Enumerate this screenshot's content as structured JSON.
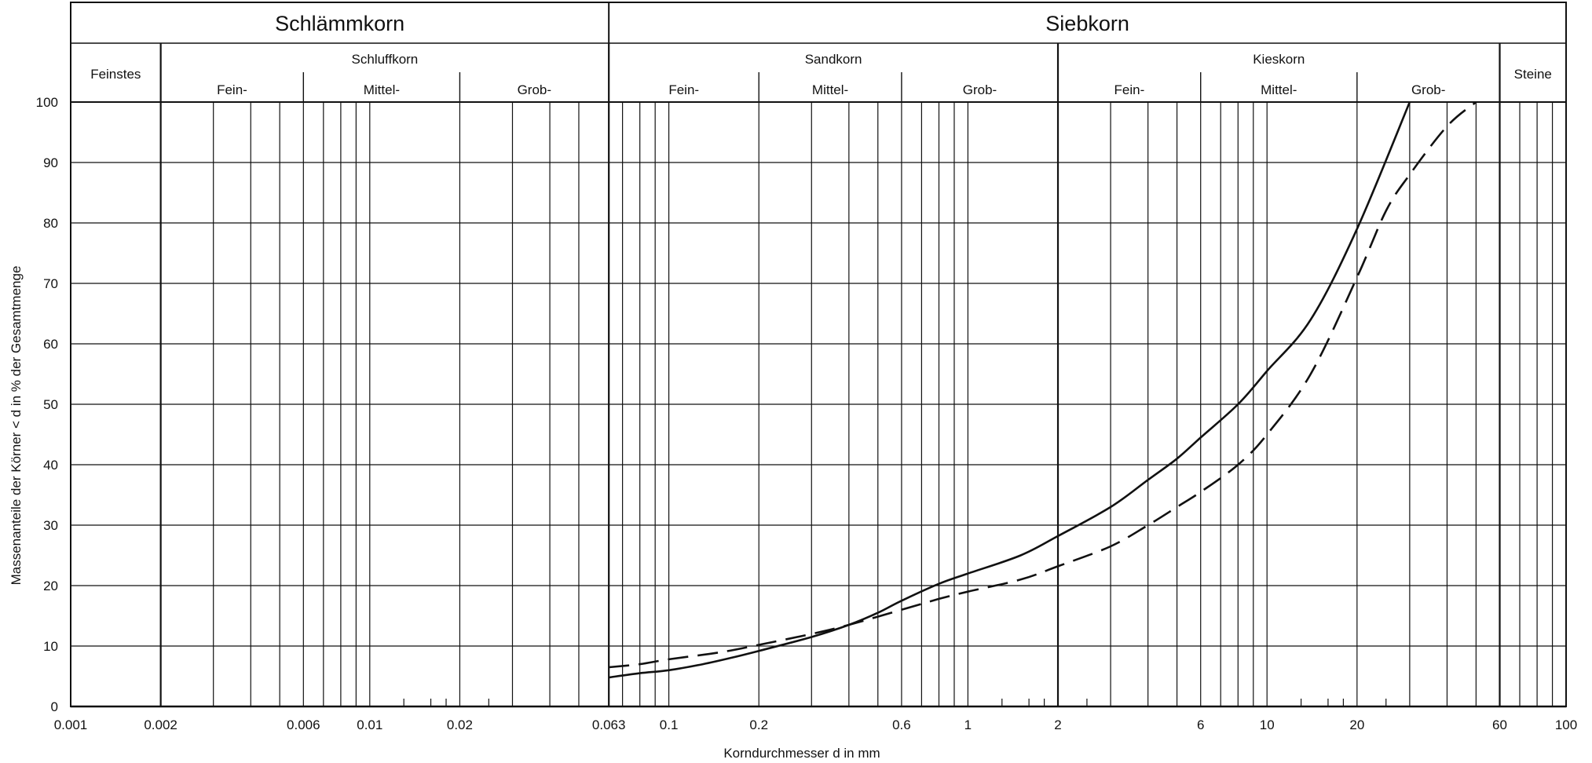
{
  "chart_data": {
    "type": "line",
    "title": "",
    "xlabel": "Korndurchmesser d in mm",
    "ylabel": "Massenanteile der Körner < d in % der Gesamtmenge",
    "x_scale": "log",
    "xlim": [
      0.001,
      100
    ],
    "ylim": [
      0,
      100
    ],
    "grid": true,
    "x_ticks": [
      {
        "v": 0.001,
        "label": "0.001"
      },
      {
        "v": 0.002,
        "label": "0.002"
      },
      {
        "v": 0.006,
        "label": "0.006"
      },
      {
        "v": 0.01,
        "label": "0.01"
      },
      {
        "v": 0.02,
        "label": "0.02"
      },
      {
        "v": 0.063,
        "label": "0.063"
      },
      {
        "v": 0.1,
        "label": "0.1"
      },
      {
        "v": 0.2,
        "label": "0.2"
      },
      {
        "v": 0.6,
        "label": "0.6"
      },
      {
        "v": 1,
        "label": "1"
      },
      {
        "v": 2,
        "label": "2"
      },
      {
        "v": 6,
        "label": "6"
      },
      {
        "v": 10,
        "label": "10"
      },
      {
        "v": 20,
        "label": "20"
      },
      {
        "v": 60,
        "label": "60"
      },
      {
        "v": 100,
        "label": "100"
      }
    ],
    "y_ticks": [
      0,
      10,
      20,
      30,
      40,
      50,
      60,
      70,
      80,
      90,
      100
    ],
    "major_gridlines_x": [
      0.002,
      0.063,
      2,
      60
    ],
    "minor_gridlines_x": [
      0.003,
      0.004,
      0.005,
      0.006,
      0.007,
      0.008,
      0.009,
      0.01,
      0.02,
      0.03,
      0.04,
      0.05,
      0.07,
      0.08,
      0.09,
      0.1,
      0.2,
      0.3,
      0.4,
      0.5,
      0.6,
      0.7,
      0.8,
      0.9,
      1,
      3,
      4,
      5,
      6,
      7,
      8,
      9,
      10,
      20,
      30,
      40,
      50,
      70,
      80,
      90
    ],
    "small_ticks_x": [
      0.013,
      0.016,
      0.018,
      0.025,
      1.3,
      1.6,
      1.8,
      2.5,
      13,
      16,
      18,
      25
    ],
    "header": {
      "groups": [
        {
          "label": "Schlämmkorn",
          "from": 0.001,
          "to": 0.063
        },
        {
          "label": "Siebkorn",
          "from": 0.063,
          "to": 100
        }
      ],
      "fractions": [
        {
          "label": "Feinstes",
          "from": 0.001,
          "to": 0.002,
          "full_height": true
        },
        {
          "label": "Schluffkorn",
          "from": 0.002,
          "to": 0.063
        },
        {
          "label": "Sandkorn",
          "from": 0.063,
          "to": 2
        },
        {
          "label": "Kieskorn",
          "from": 2,
          "to": 60
        },
        {
          "label": "Steine",
          "from": 60,
          "to": 100,
          "full_height": true
        }
      ],
      "subfractions": [
        {
          "label": "Fein-",
          "from": 0.002,
          "to": 0.006
        },
        {
          "label": "Mittel-",
          "from": 0.006,
          "to": 0.02
        },
        {
          "label": "Grob-",
          "from": 0.02,
          "to": 0.063
        },
        {
          "label": "Fein-",
          "from": 0.063,
          "to": 0.2
        },
        {
          "label": "Mittel-",
          "from": 0.2,
          "to": 0.6
        },
        {
          "label": "Grob-",
          "from": 0.6,
          "to": 2
        },
        {
          "label": "Fein-",
          "from": 2,
          "to": 6
        },
        {
          "label": "Mittel-",
          "from": 6,
          "to": 20
        },
        {
          "label": "Grob-",
          "from": 20,
          "to": 60
        }
      ]
    },
    "series": [
      {
        "style": "solid",
        "points": [
          [
            0.063,
            4.8
          ],
          [
            0.08,
            5.5
          ],
          [
            0.1,
            6.0
          ],
          [
            0.13,
            7.0
          ],
          [
            0.16,
            8.0
          ],
          [
            0.2,
            9.2
          ],
          [
            0.3,
            11.5
          ],
          [
            0.4,
            13.5
          ],
          [
            0.5,
            15.5
          ],
          [
            0.6,
            17.5
          ],
          [
            0.8,
            20.3
          ],
          [
            1,
            22.0
          ],
          [
            1.5,
            25.0
          ],
          [
            2,
            28.2
          ],
          [
            3,
            33.0
          ],
          [
            4,
            37.5
          ],
          [
            5,
            41.0
          ],
          [
            6,
            44.5
          ],
          [
            8,
            50.0
          ],
          [
            10,
            55.5
          ],
          [
            14,
            64.0
          ],
          [
            20,
            79.0
          ],
          [
            30,
            100.0
          ]
        ]
      },
      {
        "style": "dashed",
        "points": [
          [
            0.063,
            6.5
          ],
          [
            0.08,
            7.0
          ],
          [
            0.1,
            7.8
          ],
          [
            0.15,
            9.0
          ],
          [
            0.2,
            10.2
          ],
          [
            0.3,
            12.0
          ],
          [
            0.4,
            13.5
          ],
          [
            0.6,
            16.0
          ],
          [
            0.8,
            17.8
          ],
          [
            1,
            19.0
          ],
          [
            1.5,
            21.0
          ],
          [
            2,
            23.2
          ],
          [
            3,
            26.5
          ],
          [
            4,
            30.0
          ],
          [
            5,
            33.0
          ],
          [
            6,
            35.5
          ],
          [
            8,
            40.0
          ],
          [
            10,
            45.0
          ],
          [
            14,
            55.0
          ],
          [
            20,
            71.0
          ],
          [
            25,
            82.0
          ],
          [
            30,
            88.0
          ],
          [
            40,
            96.0
          ],
          [
            50,
            100.0
          ]
        ]
      }
    ]
  }
}
